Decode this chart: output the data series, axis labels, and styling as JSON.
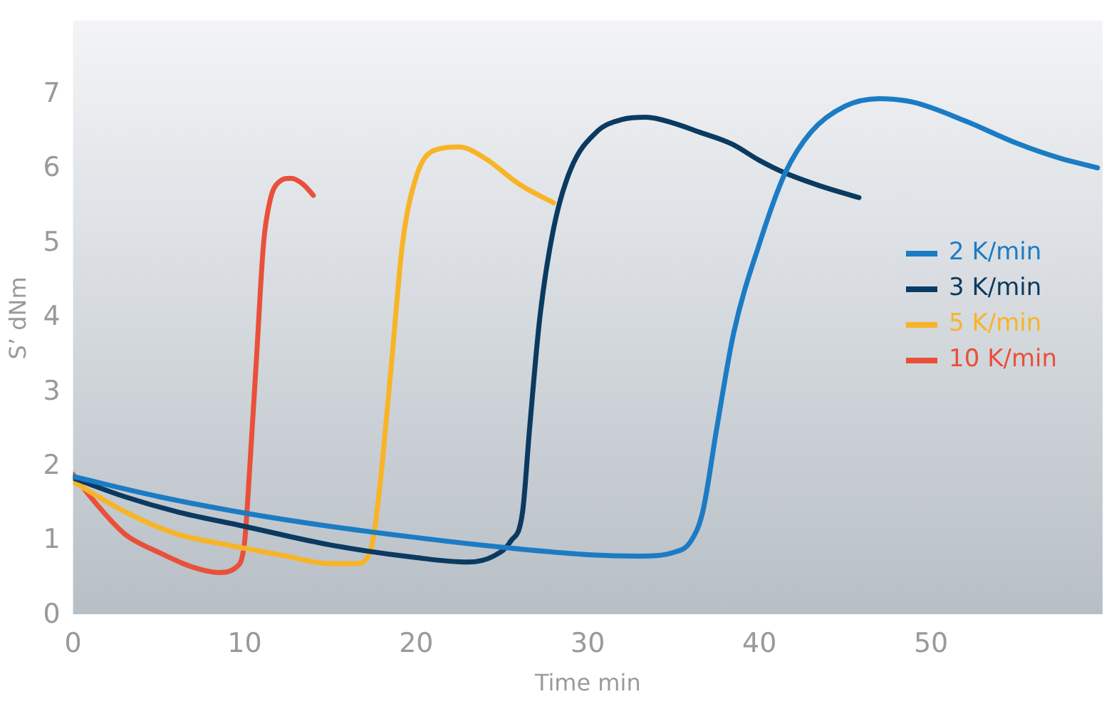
{
  "chart_data": {
    "type": "line",
    "xlabel": "Time min",
    "ylabel": "S’ dNm",
    "xlim": [
      0,
      60
    ],
    "xticks": [
      0,
      10,
      20,
      30,
      40,
      50
    ],
    "ylim": [
      0,
      8
    ],
    "yticks": [
      0,
      1,
      2,
      3,
      4,
      5,
      6,
      7
    ],
    "grid": false,
    "legend": "right",
    "marker": "none",
    "line_style": "solid",
    "series": [
      {
        "name": "2 K/min",
        "color": "#1b7cc4",
        "x": [
          0,
          5,
          10,
          15,
          20,
          25,
          30,
          33,
          35,
          36,
          36.7,
          37.5,
          38.5,
          40,
          41.5,
          43,
          45,
          47,
          49,
          52,
          55,
          57.5,
          59.7
        ],
        "values": [
          1.87,
          1.6,
          1.38,
          1.2,
          1.05,
          0.92,
          0.82,
          0.8,
          0.85,
          1.0,
          1.4,
          2.5,
          3.8,
          5.0,
          5.95,
          6.5,
          6.85,
          6.95,
          6.9,
          6.65,
          6.35,
          6.15,
          6.02
        ]
      },
      {
        "name": "3 K/min",
        "color": "#0b3a61",
        "x": [
          0,
          3,
          6,
          10,
          15,
          20,
          23,
          24.5,
          25.5,
          26.2,
          26.6,
          27.2,
          28,
          29,
          30.5,
          32,
          33.4,
          35,
          36.5,
          38.4,
          40,
          41.5,
          43.5,
          45.8
        ],
        "values": [
          1.85,
          1.6,
          1.4,
          1.2,
          0.95,
          0.78,
          0.72,
          0.8,
          1.0,
          1.4,
          2.5,
          4.0,
          5.2,
          6.0,
          6.5,
          6.67,
          6.7,
          6.62,
          6.5,
          6.34,
          6.12,
          5.95,
          5.78,
          5.62
        ]
      },
      {
        "name": "5 K/min",
        "color": "#f8b427",
        "x": [
          0,
          3,
          6,
          9,
          12,
          15,
          16.5,
          17.3,
          17.6,
          18,
          18.6,
          19.2,
          20,
          21,
          22.5,
          24,
          26,
          28
        ],
        "values": [
          1.8,
          1.4,
          1.1,
          0.95,
          0.82,
          0.7,
          0.7,
          0.85,
          1.2,
          2.0,
          3.5,
          5.0,
          5.9,
          6.25,
          6.3,
          6.15,
          5.8,
          5.55
        ]
      },
      {
        "name": "10 K/min",
        "color": "#e9503a",
        "x": [
          0,
          1,
          3,
          5,
          7,
          8.5,
          9.5,
          10,
          10.3,
          10.7,
          11.1,
          11.5,
          12,
          12.7,
          13.4,
          14
        ],
        "values": [
          1.9,
          1.6,
          1.1,
          0.85,
          0.65,
          0.58,
          0.65,
          1.0,
          2.0,
          3.5,
          5.0,
          5.6,
          5.83,
          5.88,
          5.8,
          5.65
        ]
      }
    ]
  }
}
